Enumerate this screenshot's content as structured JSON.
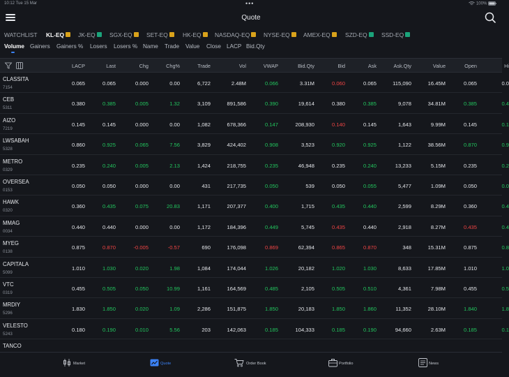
{
  "status": {
    "time": "10:12",
    "date": "Tue 15 Mar",
    "battery": "100%"
  },
  "header": {
    "title": "Quote"
  },
  "exchange_tabs": [
    {
      "label": "WATCHLIST",
      "badge": null
    },
    {
      "label": "KL-EQ",
      "badge": "D",
      "active": true
    },
    {
      "label": "JK-EQ",
      "badge": "D"
    },
    {
      "label": "SGX-EQ",
      "badge": "D"
    },
    {
      "label": "SET-EQ",
      "badge": "D"
    },
    {
      "label": "HK-EQ",
      "badge": "D"
    },
    {
      "label": "NASDAQ-EQ",
      "badge": "D"
    },
    {
      "label": "NYSE-EQ",
      "badge": "D"
    },
    {
      "label": "AMEX-EQ",
      "badge": "D"
    },
    {
      "label": "SZD-EQ",
      "badge": "D"
    },
    {
      "label": "SSD-EQ",
      "badge": "D"
    }
  ],
  "badge_colors": {
    "delayed": "#d9a21b",
    "realtime": "#1ba37a"
  },
  "sort_tabs": [
    "Volume",
    "Gainers",
    "Gainers %",
    "Losers",
    "Losers %",
    "Name",
    "Trade",
    "Value",
    "Close",
    "LACP",
    "Bid.Qty"
  ],
  "columns": [
    "LACP",
    "Last",
    "Chg",
    "Chg%",
    "Trade",
    "Vol",
    "VWAP",
    "Bid.Qty",
    "Bid",
    "Ask",
    "Ask.Qty",
    "Value",
    "Open",
    "Hi"
  ],
  "rows": [
    {
      "symbol": "CLASSITA",
      "code": "7154",
      "lacp": "0.065",
      "last": "0.065",
      "chg": "0.000",
      "chgp": "0.00",
      "trade": "6,722",
      "vol": "2.48M",
      "vwap": "0.066",
      "bidqty": "3.31M",
      "bid": "0.060",
      "ask": "0.065",
      "askqty": "115,090",
      "value": "16.45M",
      "open": "0.065",
      "hi": "0.0",
      "dir": {
        "last": "",
        "chg": "",
        "chgp": "",
        "vwap": "up",
        "bid": "down",
        "ask": "",
        "open": "",
        "hi": ""
      }
    },
    {
      "symbol": "CEB",
      "code": "5311",
      "lacp": "0.380",
      "last": "0.385",
      "chg": "0.005",
      "chgp": "1.32",
      "trade": "3,109",
      "vol": "891,586",
      "vwap": "0.390",
      "bidqty": "19,614",
      "bid": "0.380",
      "ask": "0.385",
      "askqty": "9,078",
      "value": "34.81M",
      "open": "0.385",
      "hi": "0.4",
      "dir": {
        "last": "up",
        "chg": "up",
        "chgp": "up",
        "vwap": "up",
        "bid": "",
        "ask": "up",
        "open": "up",
        "hi": "up"
      }
    },
    {
      "symbol": "AIZO",
      "code": "7219",
      "lacp": "0.145",
      "last": "0.145",
      "chg": "0.000",
      "chgp": "0.00",
      "trade": "1,082",
      "vol": "678,366",
      "vwap": "0.147",
      "bidqty": "208,930",
      "bid": "0.140",
      "ask": "0.145",
      "askqty": "1,643",
      "value": "9.99M",
      "open": "0.145",
      "hi": "0.1",
      "dir": {
        "last": "",
        "chg": "",
        "chgp": "",
        "vwap": "up",
        "bid": "down",
        "ask": "",
        "open": "",
        "hi": "up"
      }
    },
    {
      "symbol": "LWSABAH",
      "code": "5328",
      "lacp": "0.860",
      "last": "0.925",
      "chg": "0.065",
      "chgp": "7.56",
      "trade": "3,829",
      "vol": "424,402",
      "vwap": "0.908",
      "bidqty": "3,523",
      "bid": "0.920",
      "ask": "0.925",
      "askqty": "1,122",
      "value": "38.56M",
      "open": "0.870",
      "hi": "0.9",
      "dir": {
        "last": "up",
        "chg": "up",
        "chgp": "up",
        "vwap": "up",
        "bid": "up",
        "ask": "up",
        "open": "up",
        "hi": "up"
      }
    },
    {
      "symbol": "METRO",
      "code": "0329",
      "lacp": "0.235",
      "last": "0.240",
      "chg": "0.005",
      "chgp": "2.13",
      "trade": "1,424",
      "vol": "218,755",
      "vwap": "0.235",
      "bidqty": "46,948",
      "bid": "0.235",
      "ask": "0.240",
      "askqty": "13,233",
      "value": "5.15M",
      "open": "0.235",
      "hi": "0.2",
      "dir": {
        "last": "up",
        "chg": "up",
        "chgp": "up",
        "vwap": "up",
        "bid": "",
        "ask": "up",
        "open": "",
        "hi": "up"
      }
    },
    {
      "symbol": "OVERSEA",
      "code": "0153",
      "lacp": "0.050",
      "last": "0.050",
      "chg": "0.000",
      "chgp": "0.00",
      "trade": "431",
      "vol": "217,735",
      "vwap": "0.050",
      "bidqty": "539",
      "bid": "0.050",
      "ask": "0.055",
      "askqty": "5,477",
      "value": "1.09M",
      "open": "0.050",
      "hi": "0.0",
      "dir": {
        "last": "",
        "chg": "",
        "chgp": "",
        "vwap": "up",
        "bid": "",
        "ask": "up",
        "open": "",
        "hi": "up"
      }
    },
    {
      "symbol": "HAWK",
      "code": "0320",
      "lacp": "0.360",
      "last": "0.435",
      "chg": "0.075",
      "chgp": "20.83",
      "trade": "1,171",
      "vol": "207,377",
      "vwap": "0.400",
      "bidqty": "1,715",
      "bid": "0.435",
      "ask": "0.440",
      "askqty": "2,599",
      "value": "8.29M",
      "open": "0.360",
      "hi": "0.4",
      "dir": {
        "last": "up",
        "chg": "up",
        "chgp": "up",
        "vwap": "up",
        "bid": "up",
        "ask": "up",
        "open": "",
        "hi": "up"
      }
    },
    {
      "symbol": "MMAG",
      "code": "0034",
      "lacp": "0.440",
      "last": "0.440",
      "chg": "0.000",
      "chgp": "0.00",
      "trade": "1,172",
      "vol": "184,396",
      "vwap": "0.449",
      "bidqty": "5,745",
      "bid": "0.435",
      "ask": "0.440",
      "askqty": "2,918",
      "value": "8.27M",
      "open": "0.435",
      "hi": "0.4",
      "dir": {
        "last": "",
        "chg": "",
        "chgp": "",
        "vwap": "up",
        "bid": "down",
        "ask": "",
        "open": "down",
        "hi": "up"
      }
    },
    {
      "symbol": "MYEG",
      "code": "0138",
      "lacp": "0.875",
      "last": "0.870",
      "chg": "-0.005",
      "chgp": "-0.57",
      "trade": "690",
      "vol": "176,098",
      "vwap": "0.869",
      "bidqty": "62,394",
      "bid": "0.865",
      "ask": "0.870",
      "askqty": "348",
      "value": "15.31M",
      "open": "0.875",
      "hi": "0.8",
      "dir": {
        "last": "down",
        "chg": "down",
        "chgp": "down",
        "vwap": "down",
        "bid": "down",
        "ask": "down",
        "open": "",
        "hi": "up"
      }
    },
    {
      "symbol": "CAPITALA",
      "code": "5099",
      "lacp": "1.010",
      "last": "1.030",
      "chg": "0.020",
      "chgp": "1.98",
      "trade": "1,084",
      "vol": "174,044",
      "vwap": "1.026",
      "bidqty": "20,182",
      "bid": "1.020",
      "ask": "1.030",
      "askqty": "8,633",
      "value": "17.85M",
      "open": "1.010",
      "hi": "1.0",
      "dir": {
        "last": "up",
        "chg": "up",
        "chgp": "up",
        "vwap": "up",
        "bid": "up",
        "ask": "up",
        "open": "",
        "hi": "up"
      }
    },
    {
      "symbol": "VTC",
      "code": "0319",
      "lacp": "0.455",
      "last": "0.505",
      "chg": "0.050",
      "chgp": "10.99",
      "trade": "1,161",
      "vol": "164,569",
      "vwap": "0.485",
      "bidqty": "2,105",
      "bid": "0.505",
      "ask": "0.510",
      "askqty": "4,361",
      "value": "7.98M",
      "open": "0.455",
      "hi": "0.5",
      "dir": {
        "last": "up",
        "chg": "up",
        "chgp": "up",
        "vwap": "up",
        "bid": "up",
        "ask": "up",
        "open": "",
        "hi": "up"
      }
    },
    {
      "symbol": "MRDIY",
      "code": "5296",
      "lacp": "1.830",
      "last": "1.850",
      "chg": "0.020",
      "chgp": "1.09",
      "trade": "2,286",
      "vol": "151,875",
      "vwap": "1.850",
      "bidqty": "20,183",
      "bid": "1.850",
      "ask": "1.860",
      "askqty": "11,352",
      "value": "28.10M",
      "open": "1.840",
      "hi": "1.8",
      "dir": {
        "last": "up",
        "chg": "up",
        "chgp": "up",
        "vwap": "up",
        "bid": "up",
        "ask": "up",
        "open": "up",
        "hi": "up"
      }
    },
    {
      "symbol": "VELESTO",
      "code": "5243",
      "lacp": "0.180",
      "last": "0.190",
      "chg": "0.010",
      "chgp": "5.56",
      "trade": "203",
      "vol": "142,063",
      "vwap": "0.185",
      "bidqty": "104,333",
      "bid": "0.185",
      "ask": "0.190",
      "askqty": "94,660",
      "value": "2.63M",
      "open": "0.185",
      "hi": "0.1",
      "dir": {
        "last": "up",
        "chg": "up",
        "chgp": "up",
        "vwap": "up",
        "bid": "up",
        "ask": "up",
        "open": "up",
        "hi": "up"
      }
    },
    {
      "symbol": "TANCO",
      "code": "",
      "lacp": "",
      "last": "",
      "chg": "",
      "chgp": "",
      "trade": "",
      "vol": "",
      "vwap": "",
      "bidqty": "",
      "bid": "",
      "ask": "",
      "askqty": "",
      "value": "",
      "open": "",
      "hi": "",
      "dir": {}
    }
  ],
  "bottom_tabs": [
    {
      "label": "Market",
      "icon": "market-icon"
    },
    {
      "label": "Quote",
      "icon": "quote-chart-icon",
      "active": true
    },
    {
      "label": "Order Book",
      "icon": "cart-icon"
    },
    {
      "label": "Portfolio",
      "icon": "briefcase-icon"
    },
    {
      "label": "News",
      "icon": "news-icon"
    }
  ],
  "colors": {
    "up": "#22c55e",
    "down": "#ef4444",
    "accent": "#3b82f6",
    "background": "#15171c"
  }
}
